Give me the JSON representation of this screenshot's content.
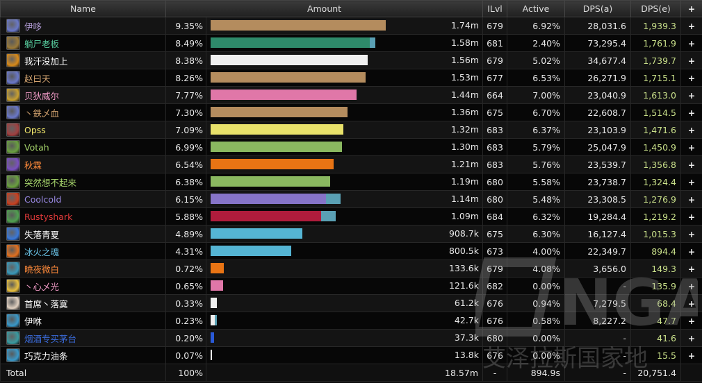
{
  "headers": {
    "name": "Name",
    "amount": "Amount",
    "ilvl": "ILvl",
    "active": "Active",
    "dps_a": "DPS(a)",
    "dps_e": "DPS(e)",
    "plus": "+"
  },
  "rows": [
    {
      "name": "伊哆",
      "name_color": "#b19bd5",
      "icon": "spell-icon",
      "icon_color": "#6a78c8",
      "pct": "9.35%",
      "fraction": 0.935,
      "bar_color": "#b48c5e",
      "extra_fraction": 0,
      "amount": "1.74m",
      "ilvl": "679",
      "active": "6.92%",
      "dps_a": "28,031.6",
      "dps_e": "1,939.3"
    },
    {
      "name": "躺尸老板",
      "name_color": "#55c79a",
      "icon": "beast-icon",
      "icon_color": "#9a7a3a",
      "pct": "8.49%",
      "fraction": 0.849,
      "bar_color": "#2e8a6a",
      "extra_fraction": 0.03,
      "extra_color": "#5aa0b4",
      "amount": "1.58m",
      "ilvl": "681",
      "active": "2.40%",
      "dps_a": "73,295.4",
      "dps_e": "1,761.9"
    },
    {
      "name": "我汗没加上",
      "name_color": "#ffffff",
      "icon": "skull-icon",
      "icon_color": "#d88a1a",
      "pct": "8.38%",
      "fraction": 0.838,
      "bar_color": "#efefef",
      "extra_fraction": 0,
      "amount": "1.56m",
      "ilvl": "679",
      "active": "5.02%",
      "dps_a": "34,677.4",
      "dps_e": "1,739.7"
    },
    {
      "name": "赵曰天",
      "name_color": "#d4a470",
      "icon": "spell-icon",
      "icon_color": "#6a78c8",
      "pct": "8.26%",
      "fraction": 0.826,
      "bar_color": "#b48c5e",
      "extra_fraction": 0,
      "amount": "1.53m",
      "ilvl": "677",
      "active": "6.53%",
      "dps_a": "26,271.9",
      "dps_e": "1,715.1"
    },
    {
      "name": "贝狄威尔",
      "name_color": "#f19bc6",
      "icon": "shield-icon",
      "icon_color": "#c8a030",
      "pct": "7.77%",
      "fraction": 0.777,
      "bar_color": "#e077a8",
      "extra_fraction": 0,
      "amount": "1.44m",
      "ilvl": "664",
      "active": "7.00%",
      "dps_a": "23,040.9",
      "dps_e": "1,613.0"
    },
    {
      "name": "丶鉄乄血",
      "name_color": "#d4a470",
      "icon": "spell-icon",
      "icon_color": "#6a78c8",
      "pct": "7.30%",
      "fraction": 0.73,
      "bar_color": "#b48c5e",
      "extra_fraction": 0,
      "amount": "1.36m",
      "ilvl": "675",
      "active": "6.70%",
      "dps_a": "22,608.7",
      "dps_e": "1,514.5"
    },
    {
      "name": "Opss",
      "name_color": "#f3e86c",
      "icon": "blade-icon",
      "icon_color": "#a04040",
      "pct": "7.09%",
      "fraction": 0.709,
      "bar_color": "#e8e16a",
      "extra_fraction": 0,
      "amount": "1.32m",
      "ilvl": "683",
      "active": "6.37%",
      "dps_a": "23,103.9",
      "dps_e": "1,471.6"
    },
    {
      "name": "Votah",
      "name_color": "#a6d46b",
      "icon": "arrow-icon",
      "icon_color": "#6aa040",
      "pct": "6.99%",
      "fraction": 0.699,
      "bar_color": "#8ab860",
      "extra_fraction": 0,
      "amount": "1.30m",
      "ilvl": "683",
      "active": "5.79%",
      "dps_a": "25,047.9",
      "dps_e": "1,450.9"
    },
    {
      "name": "秋霖",
      "name_color": "#ff8a3a",
      "icon": "shadow-icon",
      "icon_color": "#7a50c0",
      "pct": "6.54%",
      "fraction": 0.654,
      "bar_color": "#e87414",
      "extra_fraction": 0,
      "amount": "1.21m",
      "ilvl": "683",
      "active": "5.76%",
      "dps_a": "23,539.7",
      "dps_e": "1,356.8"
    },
    {
      "name": "突然想不起来",
      "name_color": "#a6d46b",
      "icon": "arrow-icon",
      "icon_color": "#6aa040",
      "pct": "6.38%",
      "fraction": 0.638,
      "bar_color": "#8ab860",
      "extra_fraction": 0,
      "amount": "1.19m",
      "ilvl": "680",
      "active": "5.58%",
      "dps_a": "23,738.7",
      "dps_e": "1,324.4"
    },
    {
      "name": "Coolcold",
      "name_color": "#9b8ae6",
      "icon": "fire-icon",
      "icon_color": "#c84020",
      "pct": "6.15%",
      "fraction": 0.615,
      "bar_color": "#8674c8",
      "extra_fraction": 0.078,
      "extra_color": "#5aa0b4",
      "amount": "1.14m",
      "ilvl": "680",
      "active": "5.48%",
      "dps_a": "23,308.5",
      "dps_e": "1,276.9"
    },
    {
      "name": "Rustyshark",
      "name_color": "#e03a3a",
      "icon": "skull-icon",
      "icon_color": "#50a050",
      "pct": "5.88%",
      "fraction": 0.588,
      "bar_color": "#b01c3c",
      "extra_fraction": 0.078,
      "extra_color": "#5aa0b4",
      "amount": "1.09m",
      "ilvl": "684",
      "active": "6.32%",
      "dps_a": "19,284.4",
      "dps_e": "1,219.2"
    },
    {
      "name": "失落青夏",
      "name_color": "#ffffff",
      "icon": "frost-icon",
      "icon_color": "#3a78d8",
      "pct": "4.89%",
      "fraction": 0.489,
      "bar_color": "#55b5d4",
      "extra_fraction": 0,
      "amount": "908.7k",
      "ilvl": "675",
      "active": "6.30%",
      "dps_a": "16,127.4",
      "dps_e": "1,015.3"
    },
    {
      "name": "冰火之魂",
      "name_color": "#6cc6ea",
      "icon": "fire-icon",
      "icon_color": "#e07020",
      "pct": "4.31%",
      "fraction": 0.431,
      "bar_color": "#55b5d4",
      "extra_fraction": 0,
      "amount": "800.5k",
      "ilvl": "673",
      "active": "4.00%",
      "dps_a": "22,349.7",
      "dps_e": "894.4"
    },
    {
      "name": "曉夜微白",
      "name_color": "#ff8a3a",
      "icon": "nature-icon",
      "icon_color": "#3a98b8",
      "pct": "0.72%",
      "fraction": 0.072,
      "bar_color": "#e87414",
      "extra_fraction": 0,
      "amount": "133.6k",
      "ilvl": "679",
      "active": "4.08%",
      "dps_a": "3,656.0",
      "dps_e": "149.3"
    },
    {
      "name": "丶心乄光",
      "name_color": "#f19bc6",
      "icon": "holy-icon",
      "icon_color": "#e8c040",
      "pct": "0.65%",
      "fraction": 0.065,
      "bar_color": "#e077a8",
      "extra_fraction": 0,
      "amount": "121.6k",
      "ilvl": "682",
      "active": "0.00%",
      "dps_a": "-",
      "dps_e": "135.9"
    },
    {
      "name": "首席丶落寞",
      "name_color": "#ffffff",
      "icon": "light-icon",
      "icon_color": "#e0d0c0",
      "pct": "0.33%",
      "fraction": 0.033,
      "bar_color": "#efefef",
      "extra_fraction": 0,
      "amount": "61.2k",
      "ilvl": "676",
      "active": "0.94%",
      "dps_a": "7,279.5",
      "dps_e": "68.4"
    },
    {
      "name": "伊咻",
      "name_color": "#ffffff",
      "icon": "frost-icon",
      "icon_color": "#3a98c8",
      "pct": "0.23%",
      "fraction": 0.023,
      "bar_color": "#efefef",
      "extra_fraction": 0.012,
      "extra_color": "#5aa0b4",
      "amount": "42.7k",
      "ilvl": "676",
      "active": "0.58%",
      "dps_a": "8,227.2",
      "dps_e": "47.7"
    },
    {
      "name": "烟酒专买茅台",
      "name_color": "#3a6ad8",
      "icon": "totem-icon",
      "icon_color": "#3a9aa0",
      "pct": "0.20%",
      "fraction": 0.02,
      "bar_color": "#2a5ad8",
      "extra_fraction": 0,
      "amount": "37.3k",
      "ilvl": "680",
      "active": "0.00%",
      "dps_a": "-",
      "dps_e": "41.6"
    },
    {
      "name": "巧克力油条",
      "name_color": "#ffffff",
      "icon": "frost-icon",
      "icon_color": "#3a98c8",
      "pct": "0.07%",
      "fraction": 0.007,
      "bar_color": "#efefef",
      "extra_fraction": 0,
      "amount": "13.8k",
      "ilvl": "676",
      "active": "0.00%",
      "dps_a": "-",
      "dps_e": "15.5"
    }
  ],
  "total": {
    "name": "Total",
    "pct": "100%",
    "amount": "18.57m",
    "ilvl": "-",
    "active": "894.9s",
    "dps_a": "-",
    "dps_e": "20,751.4"
  },
  "watermark": {
    "text": "NGA",
    "subtitle": "艾泽拉斯国家地"
  },
  "colors": {
    "dps_e_value": "#c9e08a",
    "header_bg": "#2c2c2c"
  }
}
